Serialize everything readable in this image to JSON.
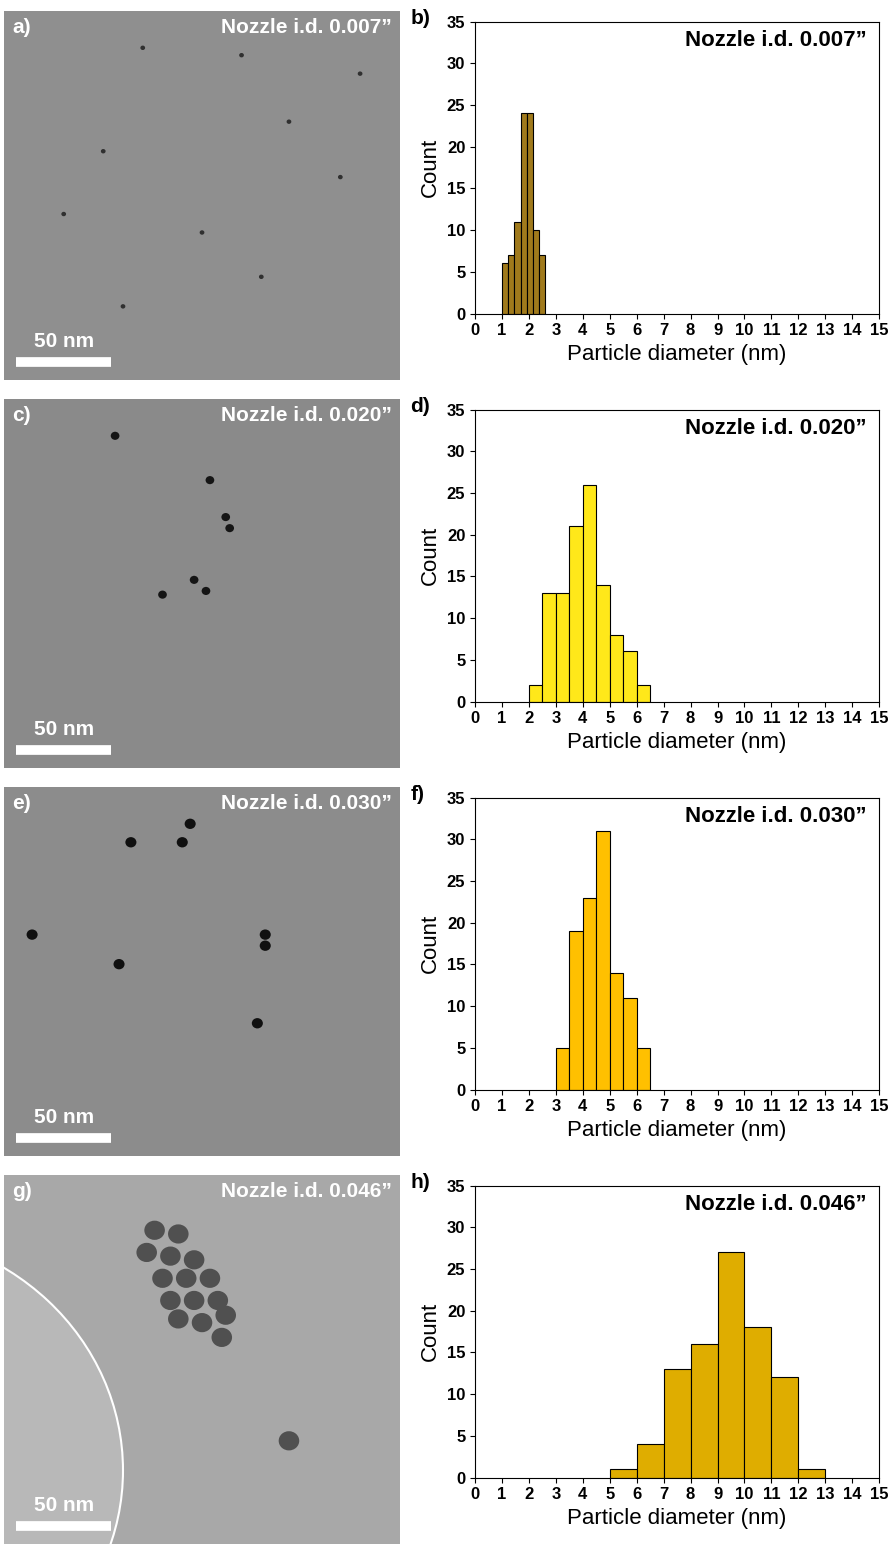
{
  "chart_data": [
    {
      "type": "image",
      "label": "a)",
      "title": "Nozzle i.d. 0.007”",
      "scale_bar": "50 nm"
    },
    {
      "type": "histogram",
      "label": "b)",
      "title": "Nozzle i.d. 0.007”",
      "x_label": "Particle diameter (nm)",
      "y_label": "Count",
      "bins": [
        1.0,
        1.23,
        1.46,
        1.69,
        1.92,
        2.15,
        2.38,
        2.61
      ],
      "values": [
        6,
        7,
        11,
        24,
        24,
        10,
        7
      ],
      "color": "#a07a1c",
      "xlim": [
        0,
        15
      ],
      "xticks": [
        0,
        1,
        2,
        3,
        4,
        5,
        6,
        7,
        8,
        9,
        10,
        11,
        12,
        13,
        14,
        15
      ],
      "ylim": [
        0,
        35
      ],
      "yticks": [
        0,
        5,
        10,
        15,
        20,
        25,
        30,
        35
      ]
    },
    {
      "type": "image",
      "label": "c)",
      "title": "Nozzle i.d. 0.020”",
      "scale_bar": "50 nm"
    },
    {
      "type": "histogram",
      "label": "d)",
      "title": "Nozzle i.d. 0.020”",
      "x_label": "Particle diameter (nm)",
      "y_label": "Count",
      "bins": [
        2.0,
        2.5,
        3.0,
        3.5,
        4.0,
        4.5,
        5.0,
        5.5,
        6.0,
        6.5
      ],
      "values": [
        2,
        13,
        13,
        21,
        26,
        14,
        8,
        6,
        2
      ],
      "color": "#ffe81a",
      "xlim": [
        0,
        15
      ],
      "xticks": [
        0,
        1,
        2,
        3,
        4,
        5,
        6,
        7,
        8,
        9,
        10,
        11,
        12,
        13,
        14,
        15
      ],
      "ylim": [
        0,
        35
      ],
      "yticks": [
        0,
        5,
        10,
        15,
        20,
        25,
        30,
        35
      ]
    },
    {
      "type": "image",
      "label": "e)",
      "title": "Nozzle i.d. 0.030”",
      "scale_bar": "50 nm"
    },
    {
      "type": "histogram",
      "label": "f)",
      "title": "Nozzle i.d. 0.030”",
      "x_label": "Particle diameter (nm)",
      "y_label": "Count",
      "bins": [
        3.0,
        3.5,
        4.0,
        4.5,
        5.0,
        5.5,
        6.0,
        6.5
      ],
      "values": [
        5,
        19,
        23,
        31,
        14,
        11,
        5
      ],
      "color": "#ffc000",
      "xlim": [
        0,
        15
      ],
      "xticks": [
        0,
        1,
        2,
        3,
        4,
        5,
        6,
        7,
        8,
        9,
        10,
        11,
        12,
        13,
        14,
        15
      ],
      "ylim": [
        0,
        35
      ],
      "yticks": [
        0,
        5,
        10,
        15,
        20,
        25,
        30,
        35
      ]
    },
    {
      "type": "image",
      "label": "g)",
      "title": "Nozzle i.d. 0.046”",
      "scale_bar": "50 nm"
    },
    {
      "type": "histogram",
      "label": "h)",
      "title": "Nozzle i.d. 0.046”",
      "x_label": "Particle diameter (nm)",
      "y_label": "Count",
      "bins": [
        5,
        6,
        7,
        8,
        9,
        10,
        11,
        12,
        13
      ],
      "values": [
        1,
        4,
        13,
        16,
        27,
        18,
        12,
        1
      ],
      "color": "#dfad00",
      "xlim": [
        0,
        15
      ],
      "xticks": [
        0,
        1,
        2,
        3,
        4,
        5,
        6,
        7,
        8,
        9,
        10,
        11,
        12,
        13,
        14,
        15
      ],
      "ylim": [
        0,
        35
      ],
      "yticks": [
        0,
        5,
        10,
        15,
        20,
        25,
        30,
        35
      ]
    }
  ]
}
